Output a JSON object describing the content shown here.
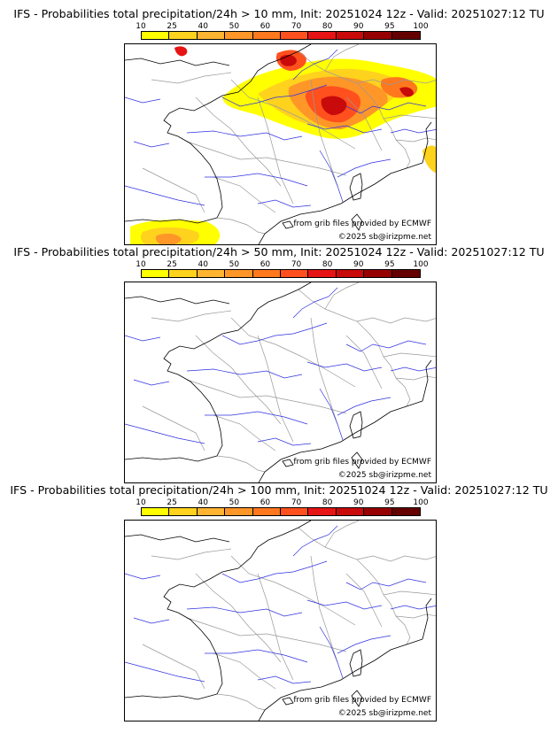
{
  "panels": [
    {
      "title": "IFS - Probabilities total precipitation/24h > 10 mm, Init: 20251024 12z - Valid: 20251027:12 TU",
      "threshold_mm": 10,
      "has_precip": true
    },
    {
      "title": "IFS - Probabilities total precipitation/24h > 50 mm, Init: 20251024 12z - Valid: 20251027:12 TU",
      "threshold_mm": 50,
      "has_precip": false
    },
    {
      "title": "IFS - Probabilities total precipitation/24h > 100 mm, Init: 20251024 12z - Valid: 20251027:12 TU",
      "threshold_mm": 100,
      "has_precip": false
    }
  ],
  "colorbar": {
    "labels": [
      "10",
      "25",
      "40",
      "50",
      "60",
      "70",
      "80",
      "90",
      "95",
      "100"
    ],
    "colors": [
      "#ffff00",
      "#ffd21e",
      "#ffb432",
      "#ff9628",
      "#ff781e",
      "#ff501e",
      "#e61414",
      "#c80a0a",
      "#960000",
      "#640000"
    ]
  },
  "credits": {
    "source": "from grib files provided by ECMWF",
    "copyright": "©2025 sb@irizpme.net"
  },
  "colors": {
    "coast": "#000000",
    "border": "#999999",
    "river": "#3030e0"
  }
}
